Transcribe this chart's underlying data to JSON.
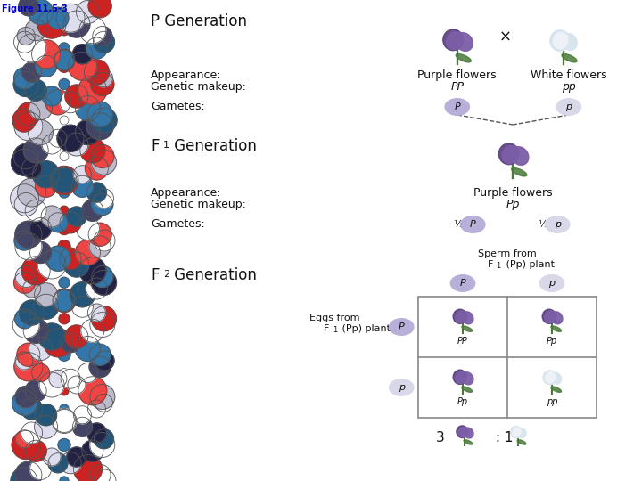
{
  "bg_color": "#ffffff",
  "text_color": "#111111",
  "purple_petal": "#7B5EA7",
  "purple_petal_dark": "#5a3e80",
  "purple_center": "#6a4a90",
  "white_petal": "#d8e4ee",
  "white_petal_edge": "#aab8cc",
  "white_center": "#c8d8cc",
  "green_stem": "#4a7a3a",
  "gamete_circle_purple": "#b8b0d8",
  "gamete_circle_white": "#d8d8e8",
  "gamete_circle_edge": "#9090aa",
  "line_color": "#555555",
  "grid_border": "#888888",
  "title_text": "Figure 11.5-3",
  "p_gen": "P Generation",
  "f1_gen_F": "F",
  "f1_gen_sub": "1",
  "f1_gen_rest": " Generation",
  "f2_gen_F": "F",
  "f2_gen_sub": "2",
  "f2_gen_rest": " Generation",
  "appearance": "Appearance:",
  "genetic": "Genetic makeup:",
  "gametes": "Gametes:",
  "purple_flowers": "Purple flowers",
  "white_flowers": "White flowers",
  "PP": "PP",
  "pp": "pp",
  "Pp": "Pp",
  "P": "P",
  "p_lower": "p",
  "half": "½",
  "sperm_line1": "Sperm from",
  "sperm_line2": "F",
  "sperm_sub": "1",
  "sperm_rest": " (Pp) plant",
  "eggs_line1": "Eggs from",
  "eggs_line2": "F",
  "eggs_sub": "1",
  "eggs_rest": " (Pp) plant",
  "ratio3": "3",
  "ratio_colon": " : 1",
  "dna_colors": [
    "#cc2222",
    "#ffffff",
    "#222244",
    "#bbbbcc",
    "#3377aa",
    "#ee4444",
    "#ddddee",
    "#444466"
  ],
  "dna_outline": "#333333"
}
